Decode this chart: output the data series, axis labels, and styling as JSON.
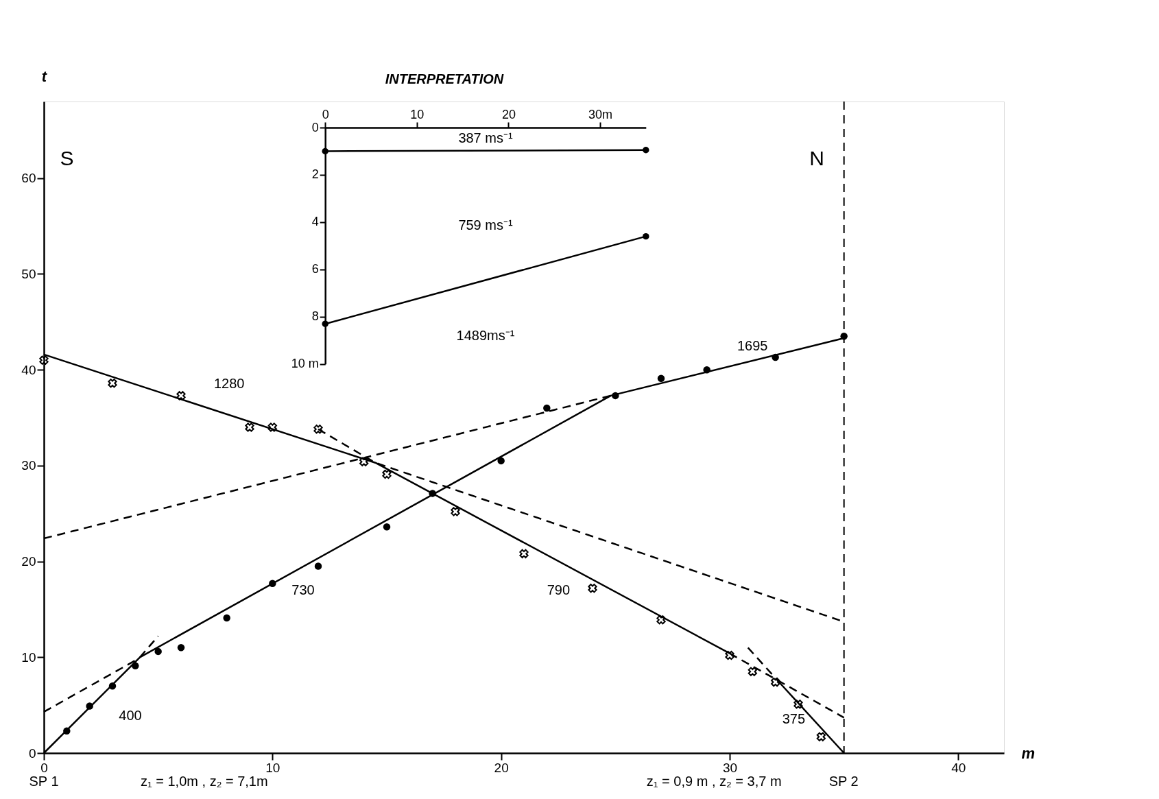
{
  "chart_data": [
    {
      "type": "scatter",
      "xlabel": "m",
      "ylabel": "t",
      "xlim": [
        0,
        42
      ],
      "ylim": [
        0,
        68
      ],
      "xticks": [
        0,
        10,
        20,
        30,
        40
      ],
      "yticks": [
        0,
        10,
        20,
        30,
        40,
        50,
        60
      ],
      "series": [
        {
          "type": "scatter",
          "marker": "circle",
          "color": "#000000",
          "x": [
            1,
            2,
            3,
            4,
            5,
            6,
            8,
            10,
            12,
            15,
            17,
            20,
            22,
            25,
            27,
            29,
            32,
            35
          ],
          "values": [
            2.3,
            4.9,
            7.0,
            9.1,
            10.6,
            11.0,
            14.1,
            17.7,
            19.5,
            23.6,
            27.1,
            30.5,
            36.0,
            37.3,
            39.1,
            40.0,
            41.3,
            43.5
          ]
        },
        {
          "type": "scatter",
          "marker": "cross",
          "color": "#000000",
          "x": [
            0,
            3,
            6,
            9,
            10,
            12,
            14,
            15,
            18,
            21,
            24,
            27,
            30,
            31,
            32,
            33,
            34
          ],
          "values": [
            41.0,
            38.6,
            37.3,
            34.0,
            34.0,
            33.8,
            30.4,
            29.1,
            25.2,
            20.8,
            17.2,
            13.9,
            10.2,
            8.5,
            7.4,
            5.1,
            1.7
          ]
        },
        {
          "type": "line",
          "line_style": "solid",
          "color": "#000000",
          "x": [
            0,
            4.2,
            24.8,
            35
          ],
          "values": [
            0,
            10.0,
            37.3,
            43.3
          ]
        },
        {
          "type": "line",
          "line_style": "dashed",
          "color": "#000000",
          "x": [
            4.2,
            5
          ],
          "values": [
            10.0,
            12.2
          ]
        },
        {
          "type": "line",
          "line_style": "dashed",
          "color": "#000000",
          "x": [
            0,
            4.1
          ],
          "values": [
            4.3,
            9.8
          ]
        },
        {
          "type": "line",
          "line_style": "dashed",
          "color": "#000000",
          "x": [
            0,
            24.8
          ],
          "values": [
            22.4,
            37.3
          ]
        },
        {
          "type": "line",
          "line_style": "solid",
          "color": "#000000",
          "x": [
            0,
            14.5,
            30
          ],
          "values": [
            41.6,
            30.3,
            10.4
          ]
        },
        {
          "type": "line",
          "line_style": "dashed",
          "color": "#000000",
          "x": [
            12,
            14.5,
            35
          ],
          "values": [
            33.8,
            30.3,
            13.7
          ]
        },
        {
          "type": "line",
          "line_style": "dashed",
          "color": "#000000",
          "x": [
            30,
            35
          ],
          "values": [
            10.4,
            3.7
          ]
        },
        {
          "type": "line",
          "line_style": "dashed",
          "color": "#000000",
          "x": [
            30.8,
            32.2
          ],
          "values": [
            11,
            7.3
          ]
        },
        {
          "type": "line",
          "line_style": "solid",
          "color": "#000000",
          "x": [
            32.2,
            35
          ],
          "values": [
            7.3,
            0
          ]
        }
      ],
      "ref_lines": [
        {
          "axis": "x",
          "value": 35,
          "line_style": "dashed"
        }
      ],
      "annotations": [
        "400",
        "730",
        "1695",
        "1280",
        "790",
        "375",
        "S",
        "N",
        "SP 1",
        "z₁ = 1,0m , z₂ = 7,1m",
        "z₁ = 0,9 m , z₂ = 3,7 m",
        "SP 2"
      ]
    },
    {
      "type": "line",
      "title": "INTERPRETATION",
      "xlim": [
        0,
        35
      ],
      "ylim": [
        10,
        0
      ],
      "xticks": [
        0,
        10,
        20,
        {
          "value": 30,
          "label": "30m"
        }
      ],
      "yticks": [
        0,
        2,
        4,
        6,
        8,
        {
          "value": 10,
          "label": "10 m"
        }
      ],
      "marker": "circle",
      "line_style": "solid",
      "series": [
        {
          "color": "#000000",
          "x": [
            0,
            35
          ],
          "values": [
            1.0,
            0.95
          ]
        },
        {
          "color": "#000000",
          "x": [
            0,
            35
          ],
          "values": [
            8.3,
            4.6
          ]
        }
      ],
      "annotations": [
        "387 ms⁻¹",
        "759 ms⁻¹",
        "1489ms⁻¹"
      ]
    }
  ]
}
